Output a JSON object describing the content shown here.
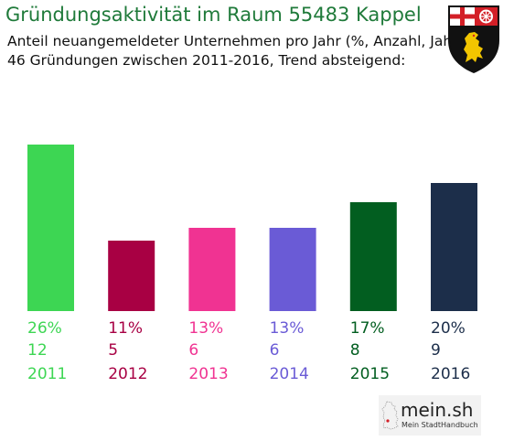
{
  "header": {
    "title": "Gründungsaktivität im Raum 55483 Kappel",
    "subtitle1": "Anteil neuangemeldeter Unternehmen pro Jahr (%, Anzahl, Jahr)",
    "subtitle2": "46 Gründungen zwischen 2011-2016, Trend absteigend:"
  },
  "emblem": {
    "name": "coat-of-arms-rheinland-pfalz-icon"
  },
  "logo": {
    "main": "mein.sh",
    "sub": "Mein StadtHandbuch",
    "icon": "germany-map-icon"
  },
  "chart_data": {
    "type": "bar",
    "categories": [
      "2011",
      "2012",
      "2013",
      "2014",
      "2015",
      "2016"
    ],
    "values": [
      26,
      11,
      13,
      13,
      17,
      20
    ],
    "value_labels": [
      "26%",
      "11%",
      "13%",
      "13%",
      "17%",
      "20%"
    ],
    "counts": [
      "12",
      "5",
      "6",
      "6",
      "8",
      "9"
    ],
    "colors": [
      "#3dd653",
      "#a80043",
      "#f03392",
      "#6a5bd6",
      "#025e20",
      "#1c2e4a"
    ],
    "title": "",
    "xlabel": "",
    "ylabel": "",
    "ylim": [
      0,
      26
    ],
    "grid": false,
    "legend": "none"
  }
}
